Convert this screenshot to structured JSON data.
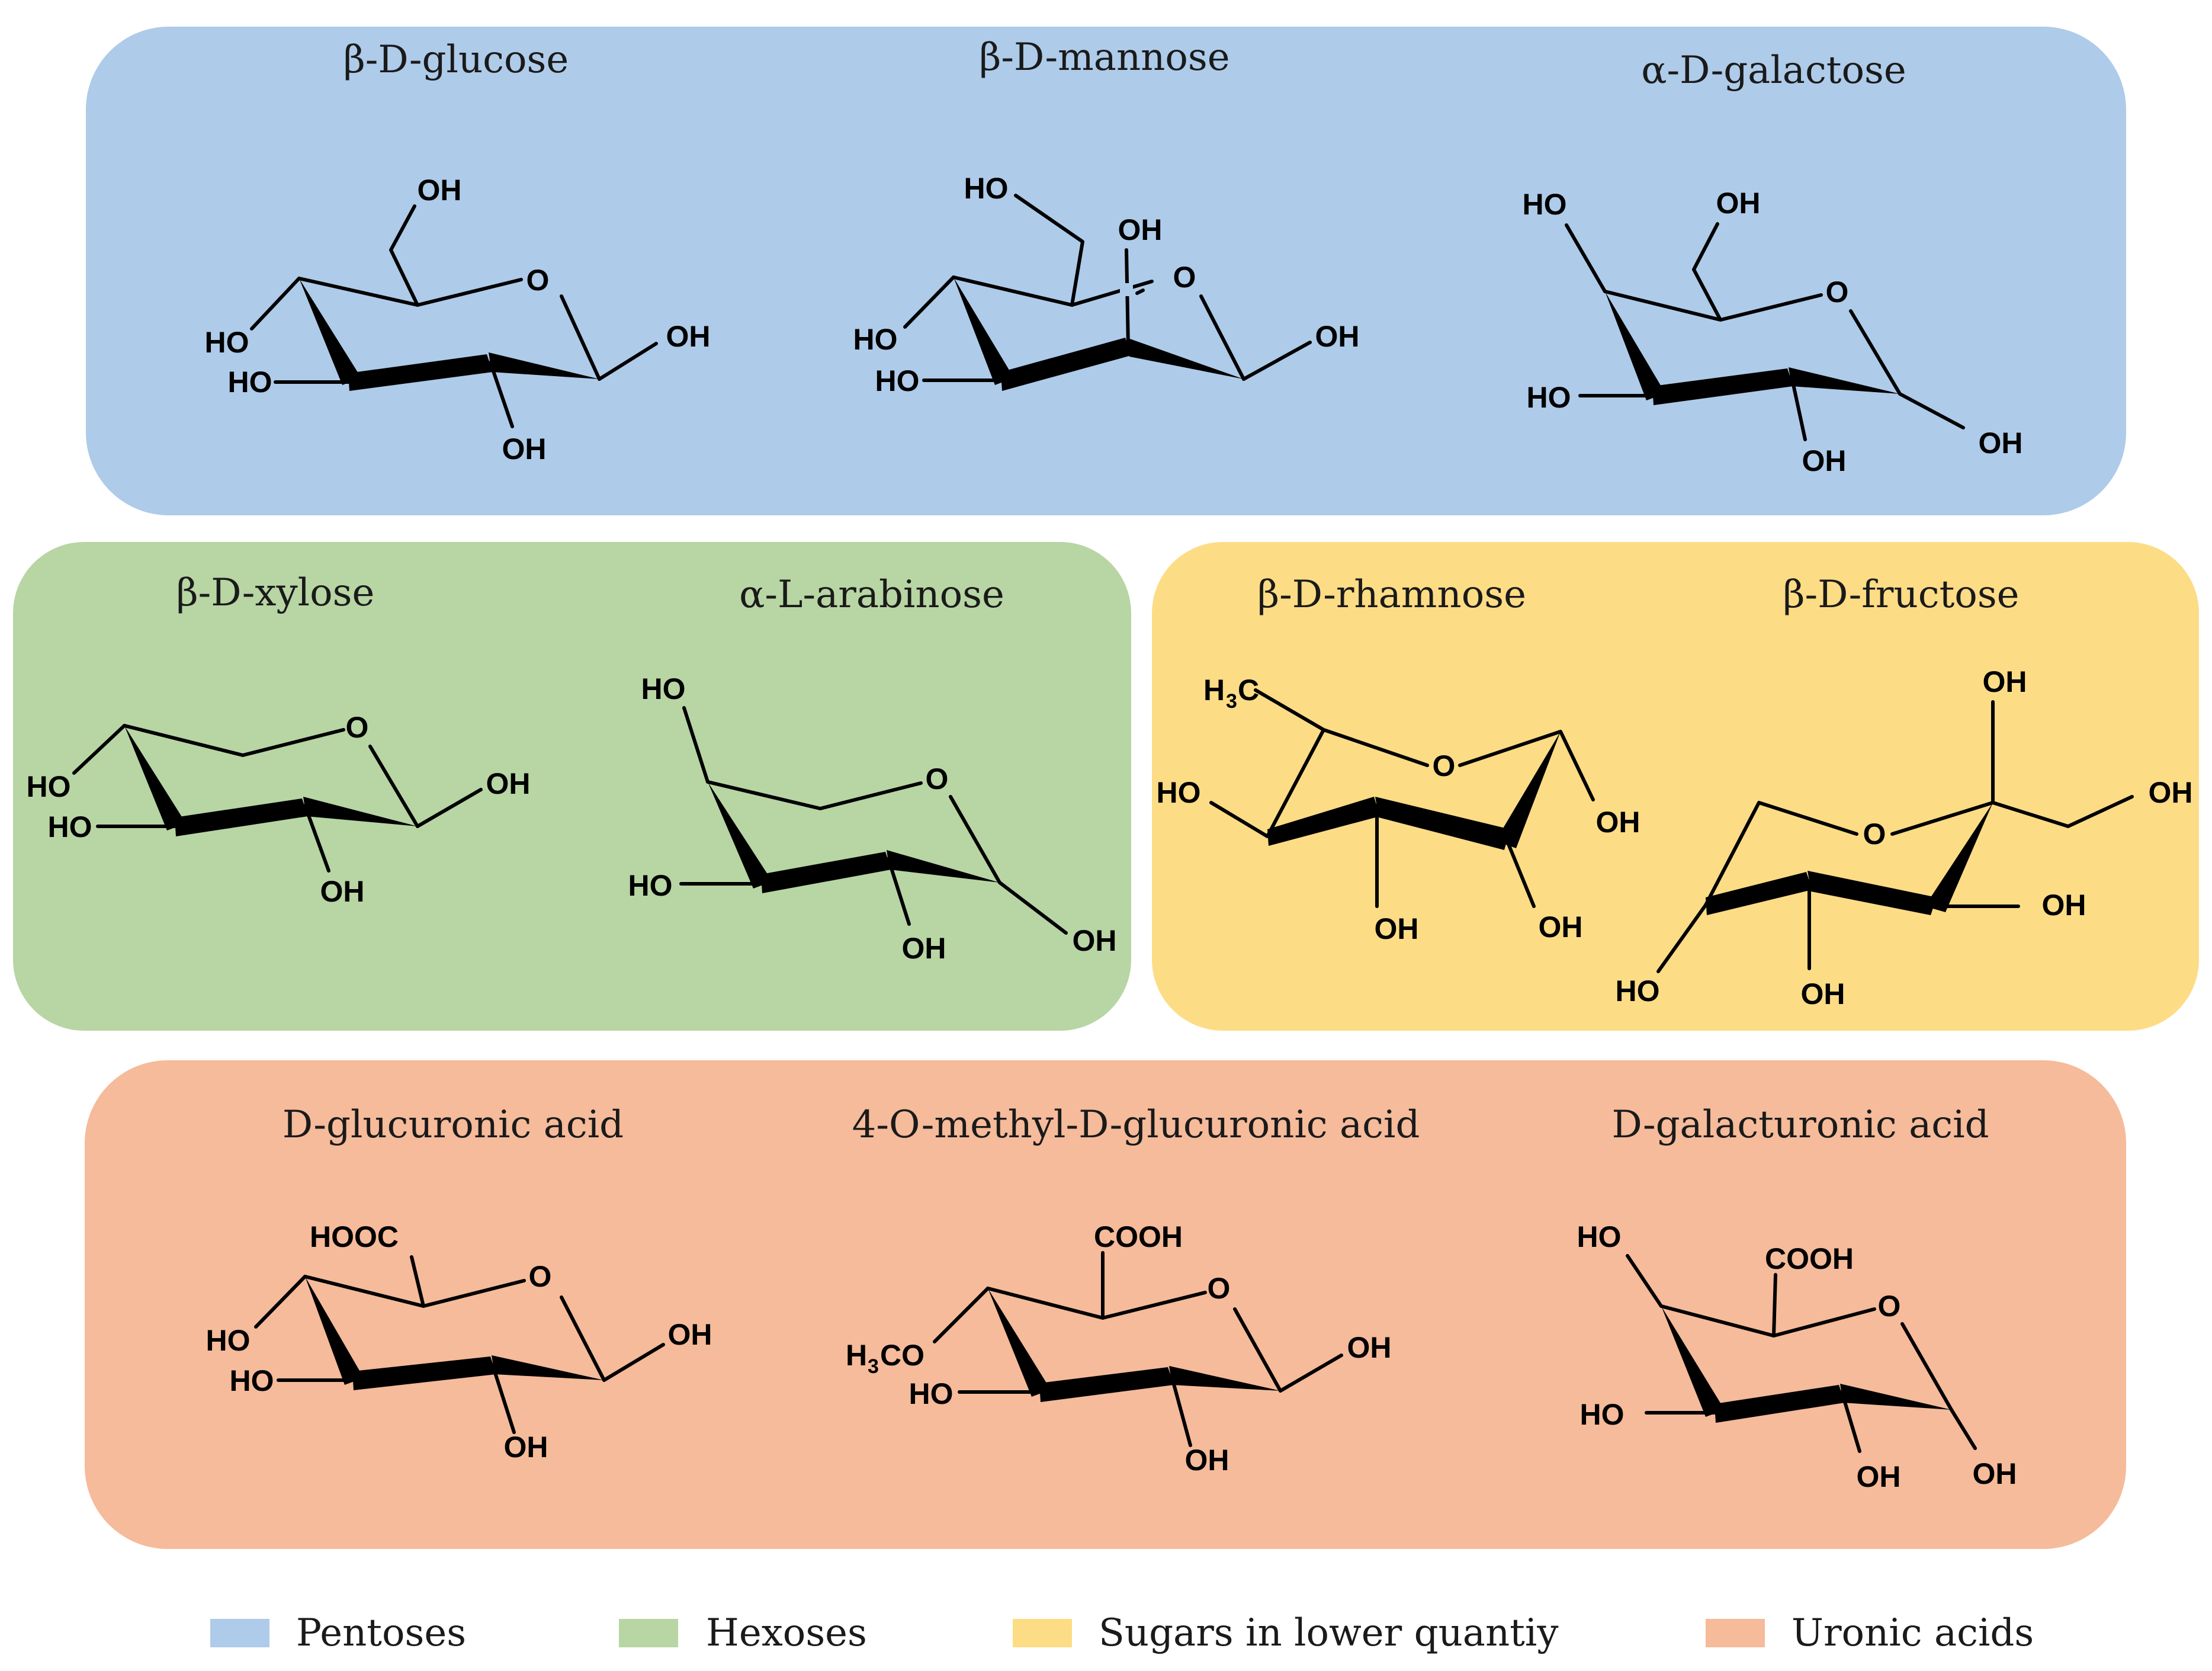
{
  "colors": {
    "pentoses": "#aecbe9",
    "hexoses": "#b8d5a4",
    "lower_quantity": "#fddc86",
    "uronic_acids": "#f5bb9a"
  },
  "groups": {
    "blue": {
      "glucose": {
        "name": "β-D-glucose",
        "labels": [
          "OH",
          "O",
          "HO",
          "HO",
          "OH",
          "OH"
        ]
      },
      "mannose": {
        "name": "β-D-mannose",
        "labels": [
          "HO",
          "OH",
          "O",
          "HO",
          "HO",
          "OH"
        ]
      },
      "galactose": {
        "name": "α-D-galactose",
        "labels": [
          "HO",
          "OH",
          "O",
          "HO",
          "OH",
          "OH"
        ]
      }
    },
    "green": {
      "xylose": {
        "name": "β-D-xylose",
        "labels": [
          "O",
          "HO",
          "HO",
          "OH",
          "OH"
        ]
      },
      "arabinose": {
        "name": "α-L-arabinose",
        "labels": [
          "HO",
          "O",
          "HO",
          "OH",
          "OH"
        ]
      }
    },
    "yellow": {
      "rhamnose": {
        "name": "β-D-rhamnose",
        "labels": [
          "H",
          "3",
          "C",
          "O",
          "HO",
          "OH",
          "OH",
          "OH"
        ]
      },
      "fructose": {
        "name": "β-D-fructose",
        "labels": [
          "OH",
          "OH",
          "O",
          "OH",
          "HO",
          "OH"
        ]
      }
    },
    "orange": {
      "glucuronic": {
        "name": "D-glucuronic acid",
        "labels": [
          "HOOC",
          "O",
          "HO",
          "HO",
          "OH",
          "OH"
        ]
      },
      "methylglucuronic": {
        "name": "4-O-methyl-D-glucuronic acid",
        "labels": [
          "COOH",
          "O",
          "H",
          "3",
          "CO",
          "HO",
          "OH",
          "OH"
        ]
      },
      "galacturonic": {
        "name": "D-galacturonic acid",
        "labels": [
          "HO",
          "COOH",
          "O",
          "HO",
          "OH",
          "OH"
        ]
      }
    }
  },
  "legend": [
    {
      "label": "Pentoses",
      "color": "#aecbe9"
    },
    {
      "label": "Hexoses",
      "color": "#b8d5a4"
    },
    {
      "label": "Sugars in lower quantiy",
      "color": "#fddc86"
    },
    {
      "label": "Uronic acids",
      "color": "#f5bb9a"
    }
  ]
}
